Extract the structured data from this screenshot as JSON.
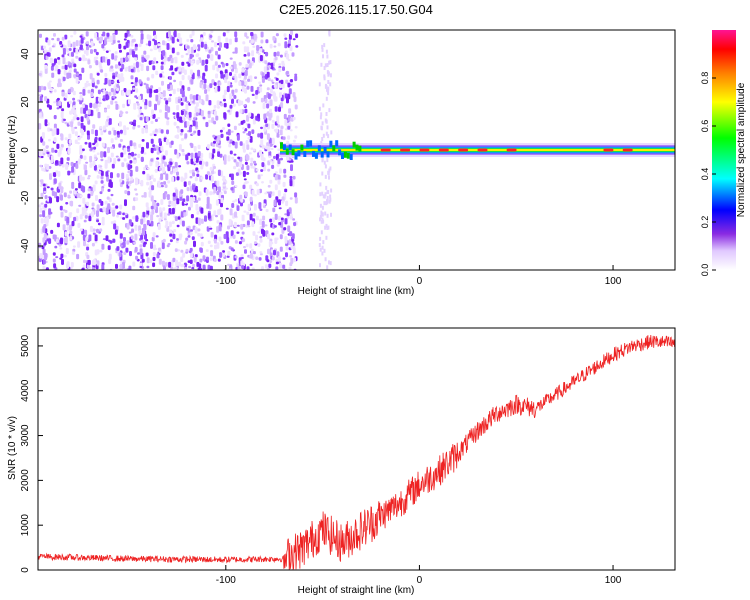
{
  "figure": {
    "title": "C2E5.2026.115.17.50.G04"
  },
  "chart_data": [
    {
      "type": "heatmap",
      "xlabel": "Height of straight line (km)",
      "ylabel": "Frequency (Hz)",
      "xlim": [
        -197,
        132
      ],
      "ylim": [
        -50,
        50
      ],
      "xticks": [
        -100,
        0,
        100
      ],
      "xtick_labels": [
        "-100",
        "0",
        "100"
      ],
      "yticks": [
        -40,
        -20,
        0,
        20,
        40
      ],
      "ytick_labels": [
        "-40",
        "-20",
        "0",
        "20",
        "40"
      ],
      "noise_region_end_km": -68,
      "signal_line_start_km": -72,
      "signal_frequency_hz": 0,
      "colorbar": {
        "label": "Normalized spectral amplitude",
        "range": [
          0,
          1
        ],
        "ticks": [
          0.0,
          0.2,
          0.4,
          0.6,
          0.8
        ],
        "tick_labels": [
          "0.0",
          "0.2",
          "0.4",
          "0.6",
          "0.8"
        ],
        "colors": [
          "#ffffff",
          "#9b30ff",
          "#0000ff",
          "#00ffff",
          "#00ff00",
          "#ffff00",
          "#ff7f00",
          "#ff0000",
          "#ff1493"
        ]
      }
    },
    {
      "type": "line",
      "series": [
        {
          "name": "SNR",
          "color": "#ee2222"
        }
      ],
      "xlabel": "Height of straight line (km)",
      "ylabel": "SNR (10 * v/v)",
      "xlim": [
        -197,
        132
      ],
      "ylim": [
        0,
        5400
      ],
      "xticks": [
        -100,
        0,
        100
      ],
      "xtick_labels": [
        "-100",
        "0",
        "100"
      ],
      "yticks": [
        0,
        1000,
        2000,
        3000,
        4000,
        5000
      ],
      "ytick_labels": [
        "0",
        "1000",
        "2000",
        "3000",
        "4000",
        "5000"
      ],
      "trend_points": {
        "x": [
          -197,
          -150,
          -100,
          -70,
          -60,
          -50,
          -40,
          -30,
          -20,
          -10,
          0,
          10,
          20,
          30,
          40,
          50,
          60,
          70,
          80,
          90,
          100,
          110,
          120,
          132
        ],
        "y": [
          300,
          250,
          230,
          250,
          500,
          900,
          600,
          900,
          1200,
          1500,
          1900,
          2200,
          2600,
          3100,
          3500,
          3700,
          3600,
          3900,
          4200,
          4500,
          4800,
          5000,
          5100,
          5050
        ]
      },
      "noise_amplitude_approx": [
        150,
        200,
        900,
        1100,
        800,
        700,
        600,
        500,
        300
      ]
    }
  ]
}
